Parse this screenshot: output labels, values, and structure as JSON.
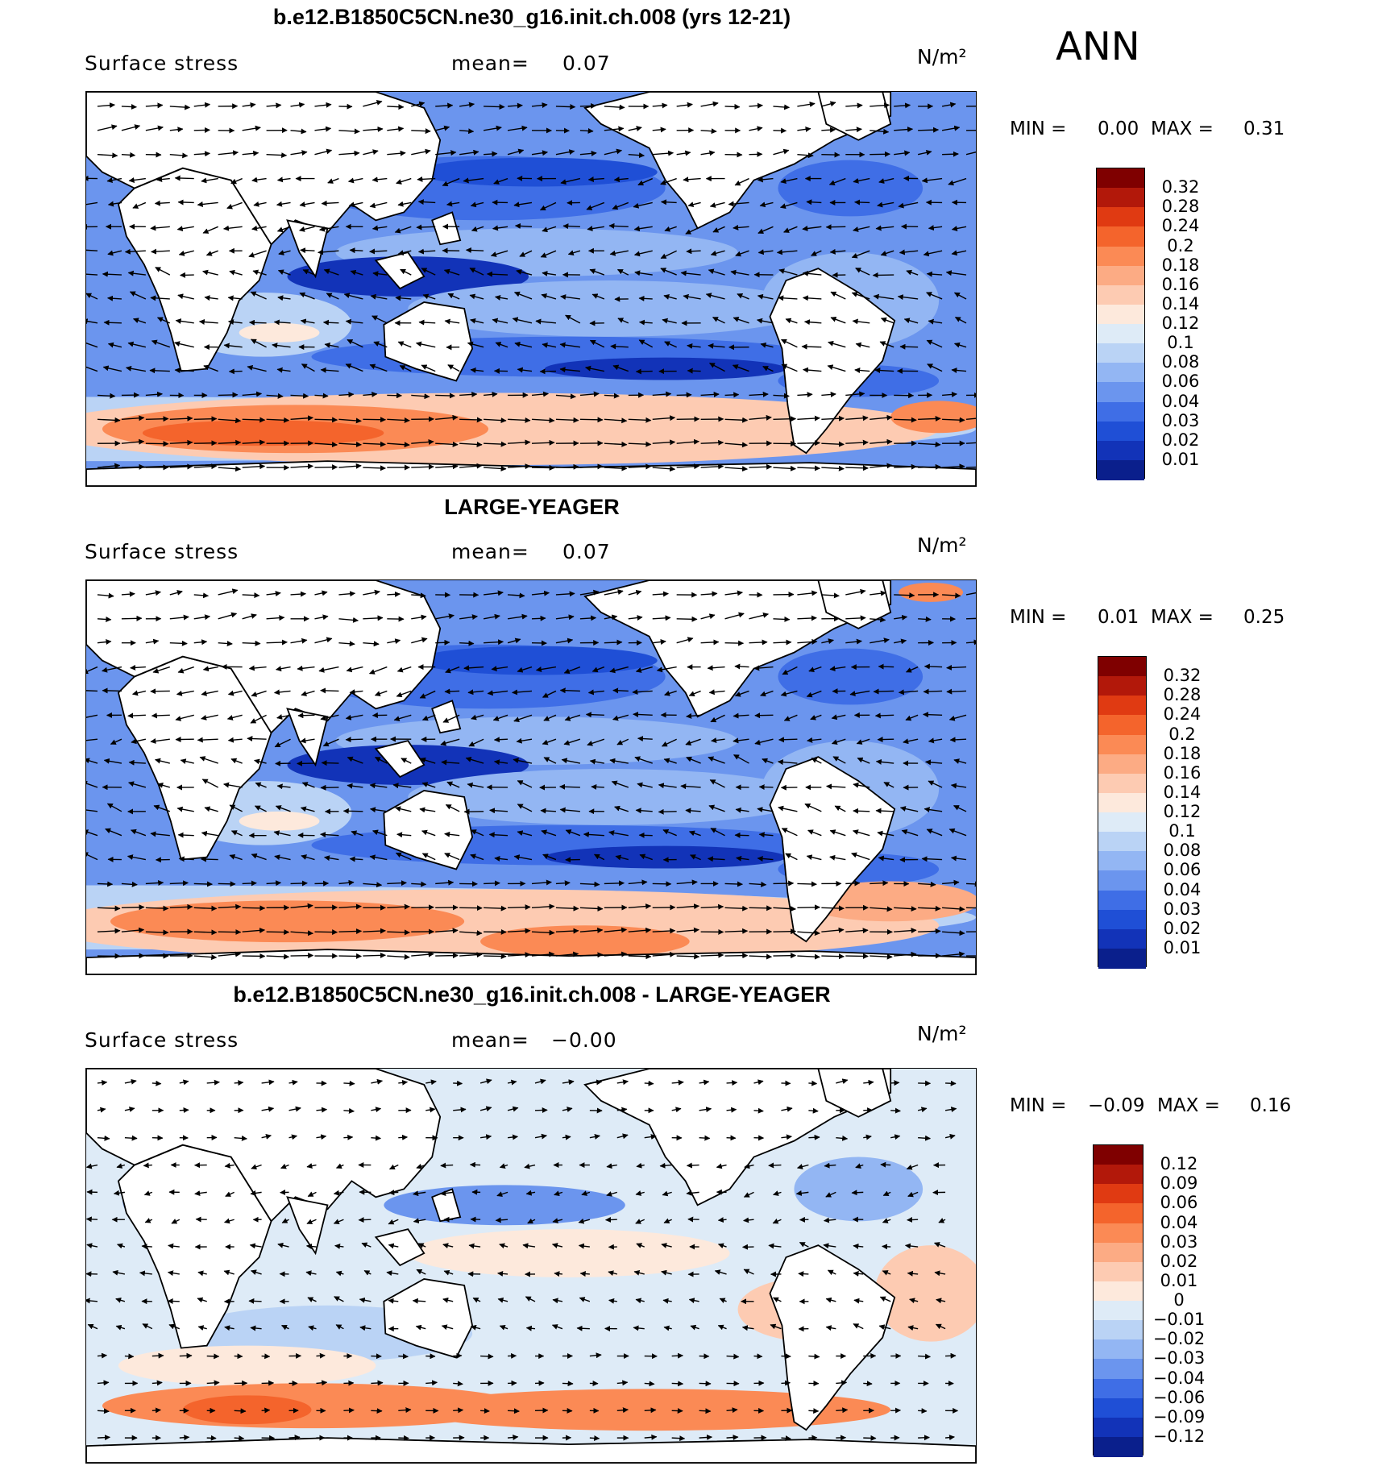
{
  "season": "ANN",
  "panels": [
    {
      "title": "b.e12.B1850C5CN.ne30_g16.init.ch.008 (yrs 12-21)",
      "variable": "Surface stress",
      "mean_label": "mean=",
      "mean_value": "0.07",
      "units": "N/m²",
      "min_label": "MIN =",
      "min_value": "0.00",
      "max_label": "MAX =",
      "max_value": "0.31",
      "colorbar_labels": [
        "0.32",
        "0.28",
        "0.24",
        "0.2",
        "0.18",
        "0.16",
        "0.14",
        "0.12",
        "0.1",
        "0.08",
        "0.06",
        "0.04",
        "0.03",
        "0.02",
        "0.01"
      ]
    },
    {
      "title": "LARGE-YEAGER",
      "variable": "Surface stress",
      "mean_label": "mean=",
      "mean_value": "0.07",
      "units": "N/m²",
      "min_label": "MIN =",
      "min_value": "0.01",
      "max_label": "MAX =",
      "max_value": "0.25",
      "colorbar_labels": [
        "0.32",
        "0.28",
        "0.24",
        "0.2",
        "0.18",
        "0.16",
        "0.14",
        "0.12",
        "0.1",
        "0.08",
        "0.06",
        "0.04",
        "0.03",
        "0.02",
        "0.01"
      ]
    },
    {
      "title": "b.e12.B1850C5CN.ne30_g16.init.ch.008 - LARGE-YEAGER",
      "variable": "Surface stress",
      "mean_label": "mean=",
      "mean_value": "−0.00",
      "units": "N/m²",
      "min_label": "MIN =",
      "min_value": "−0.09",
      "max_label": "MAX =",
      "max_value": "0.16",
      "colorbar_labels": [
        "0.12",
        "0.09",
        "0.06",
        "0.04",
        "0.03",
        "0.02",
        "0.01",
        "0",
        "−0.01",
        "−0.02",
        "−0.03",
        "−0.04",
        "−0.06",
        "−0.09",
        "−0.12"
      ]
    }
  ],
  "colors": {
    "colorbar": [
      "#7f0000",
      "#b2180a",
      "#e03a12",
      "#f4642c",
      "#fb8a55",
      "#fcab84",
      "#fdcbb2",
      "#fde9dc",
      "#deebf7",
      "#bad3f5",
      "#93b6f3",
      "#6b95ee",
      "#3f6ee6",
      "#1f4fd6",
      "#1233b8",
      "#0a1f8c"
    ],
    "land": "#ffffff",
    "coast": "#000000",
    "vectors": "#000000"
  }
}
